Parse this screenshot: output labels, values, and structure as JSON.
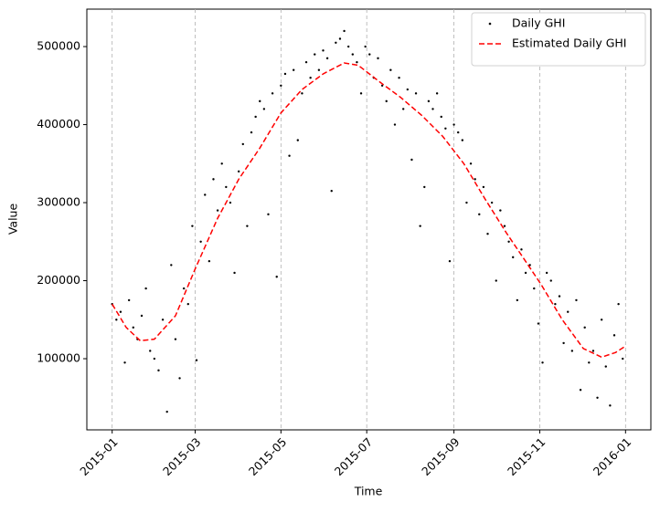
{
  "chart_data": {
    "type": "scatter",
    "xlabel": "Time",
    "ylabel": "Value",
    "xlim": [
      -18,
      383
    ],
    "ylim": [
      8800,
      548000
    ],
    "xticks": [
      {
        "value": 0,
        "label": "2015-01"
      },
      {
        "value": 59,
        "label": "2015-03"
      },
      {
        "value": 120,
        "label": "2015-05"
      },
      {
        "value": 181,
        "label": "2015-07"
      },
      {
        "value": 243,
        "label": "2015-09"
      },
      {
        "value": 304,
        "label": "2015-11"
      },
      {
        "value": 365,
        "label": "2016-01"
      }
    ],
    "yticks": [
      100000,
      200000,
      300000,
      400000,
      500000
    ],
    "grid": "x",
    "legend": "upper right",
    "series": [
      {
        "name": "Daily GHI",
        "type": "scatter",
        "color": "#000000",
        "x": [
          0,
          3,
          6,
          9,
          12,
          15,
          18,
          21,
          24,
          27,
          30,
          33,
          36,
          39,
          42,
          45,
          48,
          51,
          54,
          57,
          60,
          63,
          66,
          69,
          72,
          75,
          78,
          81,
          84,
          87,
          90,
          93,
          96,
          99,
          102,
          105,
          108,
          111,
          114,
          117,
          120,
          123,
          126,
          129,
          132,
          135,
          138,
          141,
          144,
          147,
          150,
          153,
          156,
          159,
          162,
          165,
          168,
          171,
          174,
          177,
          180,
          183,
          186,
          189,
          192,
          195,
          198,
          201,
          204,
          207,
          210,
          213,
          216,
          219,
          222,
          225,
          228,
          231,
          234,
          237,
          240,
          243,
          246,
          249,
          252,
          255,
          258,
          261,
          264,
          267,
          270,
          273,
          276,
          279,
          282,
          285,
          288,
          291,
          294,
          297,
          300,
          303,
          306,
          309,
          312,
          315,
          318,
          321,
          324,
          327,
          330,
          333,
          336,
          339,
          342,
          345,
          348,
          351,
          354,
          357,
          360,
          363
        ],
        "values": [
          170000,
          150000,
          160000,
          95000,
          175000,
          140000,
          125000,
          155000,
          190000,
          110000,
          100000,
          85000,
          150000,
          32000,
          220000,
          125000,
          75000,
          190000,
          170000,
          270000,
          98000,
          250000,
          310000,
          225000,
          330000,
          290000,
          350000,
          320000,
          300000,
          210000,
          340000,
          375000,
          270000,
          390000,
          410000,
          430000,
          420000,
          285000,
          440000,
          205000,
          450000,
          465000,
          360000,
          470000,
          380000,
          440000,
          480000,
          460000,
          490000,
          470000,
          495000,
          485000,
          315000,
          505000,
          510000,
          520000,
          500000,
          490000,
          480000,
          440000,
          500000,
          490000,
          460000,
          485000,
          450000,
          430000,
          470000,
          400000,
          460000,
          420000,
          445000,
          355000,
          440000,
          270000,
          320000,
          430000,
          420000,
          440000,
          410000,
          395000,
          225000,
          400000,
          390000,
          380000,
          300000,
          350000,
          330000,
          285000,
          320000,
          260000,
          300000,
          200000,
          290000,
          270000,
          250000,
          230000,
          175000,
          240000,
          210000,
          220000,
          190000,
          145000,
          95000,
          210000,
          200000,
          170000,
          180000,
          120000,
          160000,
          110000,
          175000,
          60000,
          140000,
          95000,
          110000,
          50000,
          150000,
          90000,
          40000,
          130000,
          170000,
          100000
        ]
      },
      {
        "name": "Estimated Daily GHI",
        "type": "line",
        "color": "#ff0000",
        "x": [
          0,
          10,
          20,
          30,
          45,
          59,
          75,
          90,
          105,
          120,
          135,
          150,
          165,
          175,
          190,
          205,
          220,
          235,
          250,
          265,
          280,
          295,
          305,
          320,
          335,
          348,
          358,
          364
        ],
        "values": [
          170000,
          140000,
          123000,
          125000,
          155000,
          215000,
          280000,
          330000,
          370000,
          415000,
          445000,
          465000,
          479000,
          476000,
          455000,
          435000,
          412000,
          385000,
          350000,
          305000,
          262000,
          222000,
          195000,
          150000,
          113000,
          102000,
          108000,
          115000
        ]
      }
    ]
  }
}
